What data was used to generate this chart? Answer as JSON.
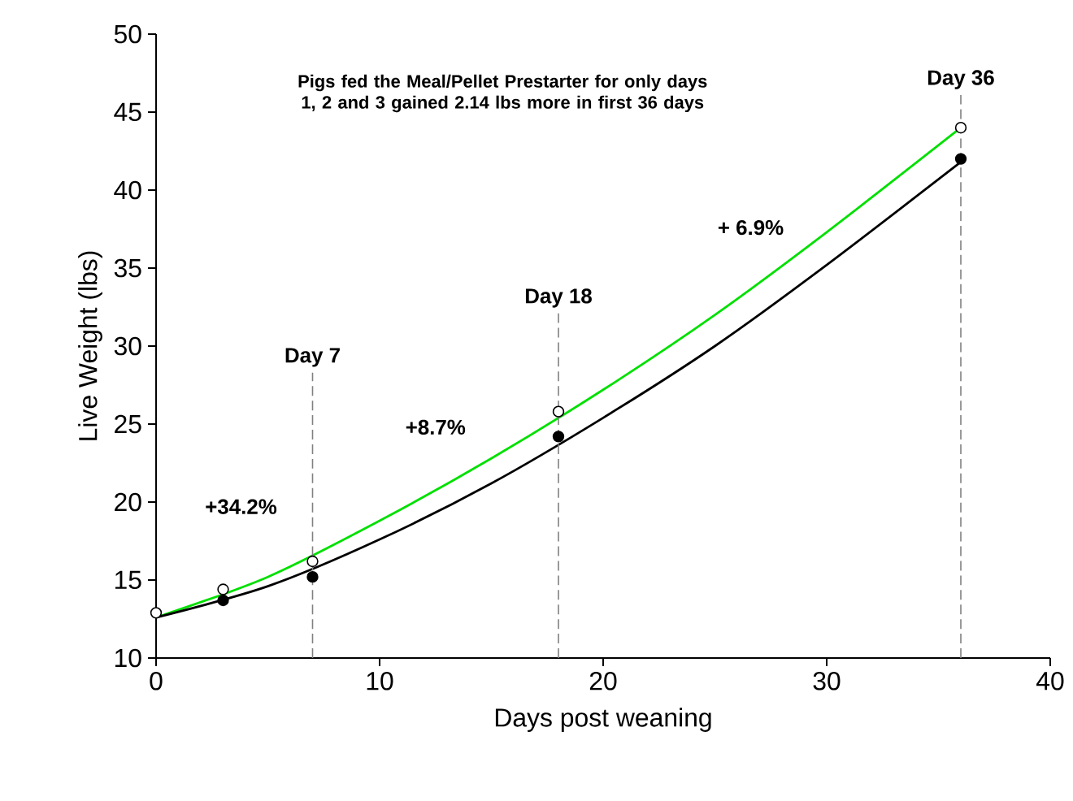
{
  "chart_data": {
    "type": "scatter",
    "xlabel": "Days post weaning",
    "ylabel": "Live Weight (lbs)",
    "xlim": [
      0,
      40
    ],
    "ylim": [
      10,
      50
    ],
    "xticks": [
      0,
      10,
      20,
      30,
      40
    ],
    "yticks": [
      10,
      15,
      20,
      25,
      30,
      35,
      40,
      45,
      50
    ],
    "grid": false,
    "series": [
      {
        "type": "line",
        "marker": "none",
        "color": "#00e000",
        "x": [
          0,
          5,
          10,
          15,
          20,
          25,
          30,
          36
        ],
        "values": [
          12.6,
          15.2,
          18.8,
          22.8,
          27.2,
          32.0,
          37.3,
          44.0
        ]
      },
      {
        "type": "line",
        "marker": "none",
        "color": "#000000",
        "x": [
          0,
          5,
          10,
          15,
          20,
          25,
          30,
          36
        ],
        "values": [
          12.6,
          14.6,
          17.6,
          21.2,
          25.4,
          30.0,
          35.2,
          41.8
        ]
      },
      {
        "marker": "circle",
        "color": "#ffffff",
        "x": [
          0,
          3,
          7,
          18,
          36
        ],
        "values": [
          12.9,
          14.4,
          16.2,
          25.8,
          44.0
        ]
      },
      {
        "marker": "circle",
        "color": "#000000",
        "x": [
          3,
          7,
          18,
          36
        ],
        "values": [
          13.7,
          15.2,
          24.2,
          42.0
        ]
      }
    ],
    "ref_lines": [
      {
        "axis": "x",
        "value": 7,
        "label": "Day 7",
        "color": "#808080",
        "line_style": "dashed"
      },
      {
        "axis": "x",
        "value": 18,
        "label": "Day 18",
        "color": "#808080",
        "line_style": "dashed"
      },
      {
        "axis": "x",
        "value": 36,
        "label": "Day 36",
        "color": "#808080",
        "line_style": "dashed"
      }
    ],
    "annotations": [
      "Pigs fed the Meal/Pellet Prestarter for only days 1, 2 and 3 gained 2.14 lbs more in first 36 days",
      "+34.2%",
      "+8.7%",
      "+ 6.9%"
    ]
  }
}
